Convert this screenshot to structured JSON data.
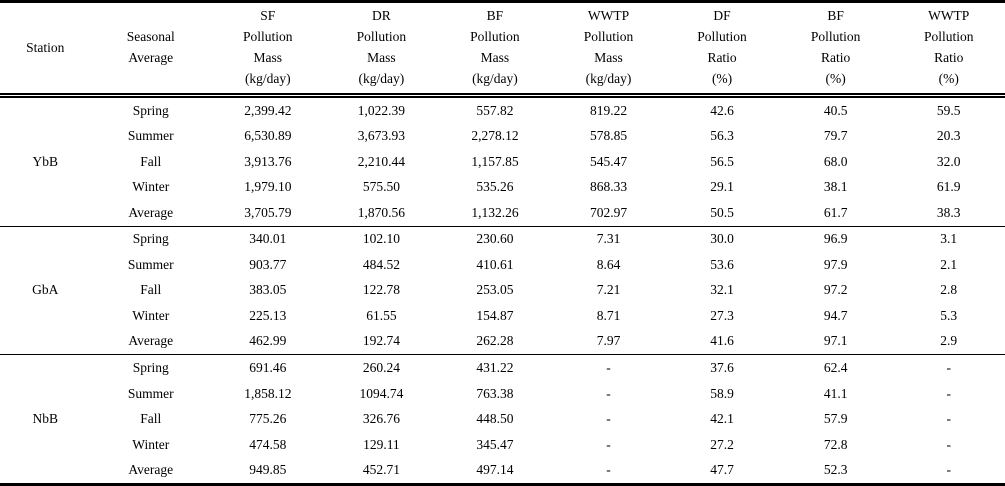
{
  "chart_data": {
    "type": "table",
    "columns": [
      "Station",
      "Seasonal\nAverage",
      "SF\nPollution\nMass\n(kg/day)",
      "DR\nPollution\nMass\n(kg/day)",
      "BF\nPollution\nMass\n(kg/day)",
      "WWTP\nPollution\nMass\n(kg/day)",
      "DF\nPollution\nRatio\n(%)",
      "BF\nPollution\nRatio\n(%)",
      "WWTP\nPollution\nRatio\n(%)"
    ],
    "groups": [
      {
        "station": "YbB",
        "rows": [
          {
            "season": "Spring",
            "values": [
              "2,399.42",
              "1,022.39",
              "557.82",
              "819.22",
              "42.6",
              "40.5",
              "59.5"
            ]
          },
          {
            "season": "Summer",
            "values": [
              "6,530.89",
              "3,673.93",
              "2,278.12",
              "578.85",
              "56.3",
              "79.7",
              "20.3"
            ]
          },
          {
            "season": "Fall",
            "values": [
              "3,913.76",
              "2,210.44",
              "1,157.85",
              "545.47",
              "56.5",
              "68.0",
              "32.0"
            ]
          },
          {
            "season": "Winter",
            "values": [
              "1,979.10",
              "575.50",
              "535.26",
              "868.33",
              "29.1",
              "38.1",
              "61.9"
            ]
          },
          {
            "season": "Average",
            "values": [
              "3,705.79",
              "1,870.56",
              "1,132.26",
              "702.97",
              "50.5",
              "61.7",
              "38.3"
            ]
          }
        ]
      },
      {
        "station": "GbA",
        "rows": [
          {
            "season": "Spring",
            "values": [
              "340.01",
              "102.10",
              "230.60",
              "7.31",
              "30.0",
              "96.9",
              "3.1"
            ]
          },
          {
            "season": "Summer",
            "values": [
              "903.77",
              "484.52",
              "410.61",
              "8.64",
              "53.6",
              "97.9",
              "2.1"
            ]
          },
          {
            "season": "Fall",
            "values": [
              "383.05",
              "122.78",
              "253.05",
              "7.21",
              "32.1",
              "97.2",
              "2.8"
            ]
          },
          {
            "season": "Winter",
            "values": [
              "225.13",
              "61.55",
              "154.87",
              "8.71",
              "27.3",
              "94.7",
              "5.3"
            ]
          },
          {
            "season": "Average",
            "values": [
              "462.99",
              "192.74",
              "262.28",
              "7.97",
              "41.6",
              "97.1",
              "2.9"
            ]
          }
        ]
      },
      {
        "station": "NbB",
        "rows": [
          {
            "season": "Spring",
            "values": [
              "691.46",
              "260.24",
              "431.22",
              "-",
              "37.6",
              "62.4",
              "-"
            ]
          },
          {
            "season": "Summer",
            "values": [
              "1,858.12",
              "1094.74",
              "763.38",
              "-",
              "58.9",
              "41.1",
              "-"
            ]
          },
          {
            "season": "Fall",
            "values": [
              "775.26",
              "326.76",
              "448.50",
              "-",
              "42.1",
              "57.9",
              "-"
            ]
          },
          {
            "season": "Winter",
            "values": [
              "474.58",
              "129.11",
              "345.47",
              "-",
              "27.2",
              "72.8",
              "-"
            ]
          },
          {
            "season": "Average",
            "values": [
              "949.85",
              "452.71",
              "497.14",
              "-",
              "47.7",
              "52.3",
              "-"
            ]
          }
        ]
      }
    ]
  }
}
